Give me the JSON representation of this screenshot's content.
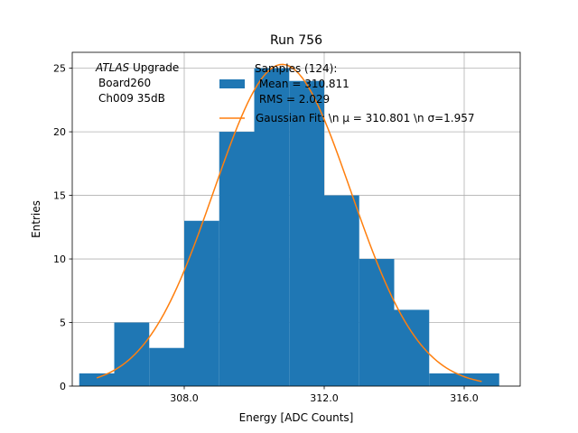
{
  "chart_data": {
    "type": "bar",
    "title": "Run 756",
    "xlabel": "Energy [ADC Counts]",
    "ylabel": "Entries",
    "xlim": [
      304.8,
      317.6
    ],
    "ylim": [
      0,
      26.25
    ],
    "grid": true,
    "x_ticks": [
      308,
      312,
      316
    ],
    "x_tick_labels": [
      "308.0",
      "312.0",
      "316.0"
    ],
    "y_ticks": [
      0,
      5,
      10,
      15,
      20,
      25
    ],
    "y_tick_labels": [
      "0",
      "5",
      "10",
      "15",
      "20",
      "25"
    ],
    "bin_edges": [
      305,
      306,
      307,
      308,
      309,
      310,
      311,
      312,
      313,
      314,
      315,
      316,
      317
    ],
    "bin_counts": [
      1,
      5,
      3,
      13,
      20,
      25,
      24,
      15,
      10,
      6,
      1,
      1
    ],
    "histogram_color": "#1f77b4",
    "fit": {
      "type": "gaussian",
      "mu": 310.801,
      "sigma": 1.957,
      "amplitude": 25.3,
      "x_range": [
        305.5,
        316.5
      ],
      "color": "#ff7f0e"
    },
    "annotation": {
      "line1_italic": "ATLAS",
      "line1_rest": " Upgrade",
      "line2": "Board260",
      "line3": "Ch009 35dB"
    },
    "legend": {
      "position": "top-right",
      "hist_label_lines": [
        "Samples (124):",
        " Mean = 310.811",
        " RMS = 2.029"
      ],
      "fit_label": "Gaussian Fit: \\n μ = 310.801 \\n σ=1.957"
    }
  }
}
